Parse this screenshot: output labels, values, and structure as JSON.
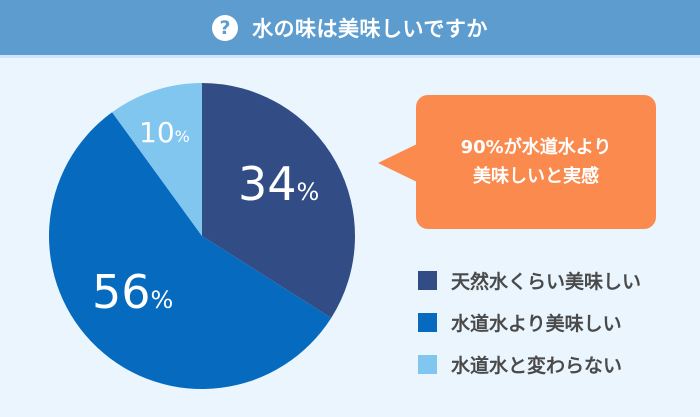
{
  "header": {
    "icon": "question-circle-icon",
    "title": "水の味は美味しいですか"
  },
  "callout": {
    "line1": "90%が水道水より",
    "line2": "美味しいと実感"
  },
  "legend": [
    {
      "label": "天然水くらい美味しい",
      "color": "#324d86"
    },
    {
      "label": "水道水より美味しい",
      "color": "#066abf"
    },
    {
      "label": "水道水と変わらない",
      "color": "#80c6ef"
    }
  ],
  "slices": [
    {
      "value": "34",
      "unit": "%"
    },
    {
      "value": "56",
      "unit": "%"
    },
    {
      "value": "10",
      "unit": "%"
    }
  ],
  "chart_data": {
    "type": "pie",
    "title": "水の味は美味しいですか",
    "categories": [
      "天然水くらい美味しい",
      "水道水より美味しい",
      "水道水と変わらない"
    ],
    "values": [
      34,
      56,
      10
    ],
    "colors": [
      "#324d86",
      "#066abf",
      "#80c6ef"
    ],
    "annotation": "90%が水道水より美味しいと実感",
    "legend_position": "right"
  }
}
